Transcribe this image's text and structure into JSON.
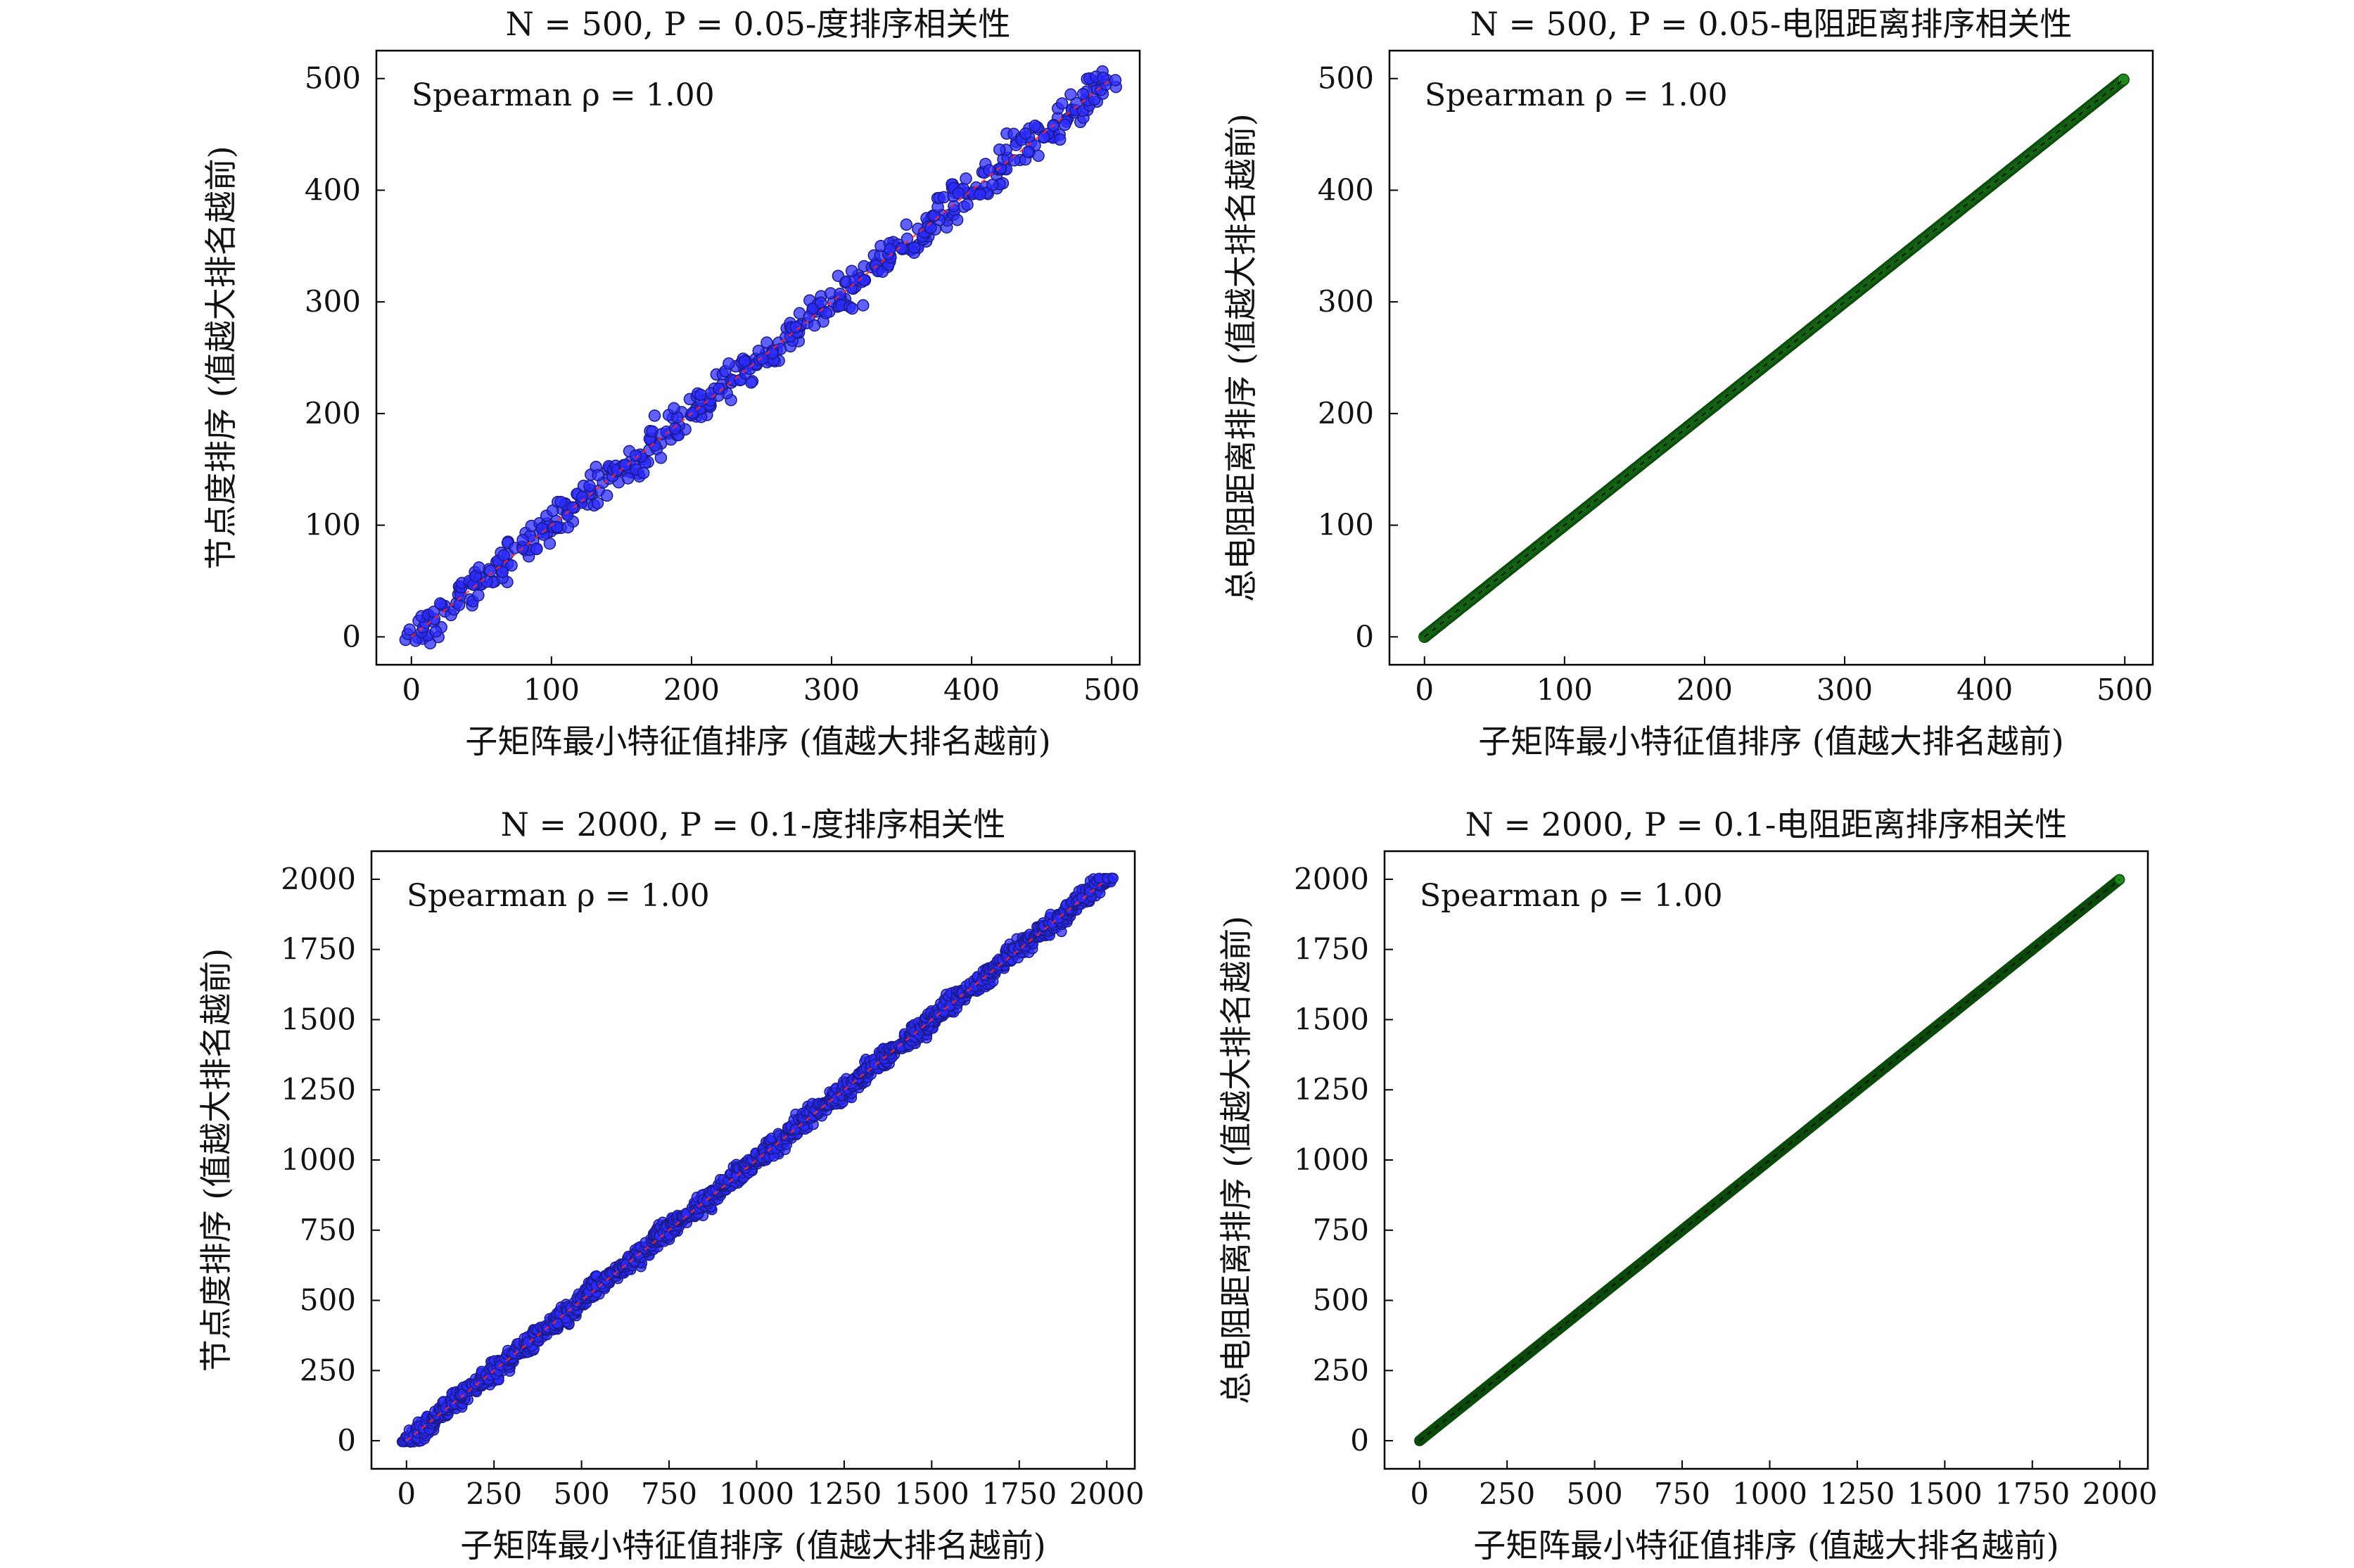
{
  "figure": {
    "colors": {
      "degree_marker": "#2b2bff",
      "degree_edge": "#1a1a8a",
      "degree_line": "#ff2a2a",
      "resistance_marker": "#1f8a1f",
      "resistance_edge": "#0b4a0b",
      "resistance_line": "#111111"
    }
  },
  "chart_data": [
    {
      "type": "scatter",
      "title": "N = 500, P = 0.05-度排序相关性",
      "xlabel": "子矩阵最小特征值排序 (值越大排名越前)",
      "ylabel": "节点度排序 (值越大排名越前)",
      "annotation": "Spearman ρ = 1.00",
      "xlim": [
        -25,
        520
      ],
      "ylim": [
        -25,
        525
      ],
      "xticks": [
        0,
        100,
        200,
        300,
        400,
        500
      ],
      "yticks": [
        0,
        100,
        200,
        300,
        400,
        500
      ],
      "n_points": 500,
      "scatter_band_halfwidth": 18,
      "series": [
        {
          "x_range": [
            0,
            499
          ],
          "y_trend": "y ≈ x with stepwise scatter",
          "marker": "circle",
          "color": "degree"
        }
      ],
      "reference_line": [
        [
          0,
          0
        ],
        [
          499,
          499
        ]
      ]
    },
    {
      "type": "scatter",
      "title": "N = 500, P = 0.05-电阻距离排序相关性",
      "xlabel": "子矩阵最小特征值排序 (值越大排名越前)",
      "ylabel": "总电阻距离排序 (值越大排名越前)",
      "annotation": "Spearman ρ = 1.00",
      "xlim": [
        -25,
        520
      ],
      "ylim": [
        -25,
        525
      ],
      "xticks": [
        0,
        100,
        200,
        300,
        400,
        500
      ],
      "yticks": [
        0,
        100,
        200,
        300,
        400,
        500
      ],
      "n_points": 500,
      "scatter_band_halfwidth": 0,
      "series": [
        {
          "x_range": [
            0,
            499
          ],
          "y_trend": "y = x",
          "marker": "circle",
          "color": "resistance"
        }
      ],
      "reference_line": [
        [
          0,
          0
        ],
        [
          499,
          499
        ]
      ]
    },
    {
      "type": "scatter",
      "title": "N = 2000, P = 0.1-度排序相关性",
      "xlabel": "子矩阵最小特征值排序 (值越大排名越前)",
      "ylabel": "节点度排序 (值越大排名越前)",
      "annotation": "Spearman ρ = 1.00",
      "xlim": [
        -100,
        2080
      ],
      "ylim": [
        -100,
        2100
      ],
      "xticks": [
        0,
        250,
        500,
        750,
        1000,
        1250,
        1500,
        1750,
        2000
      ],
      "yticks": [
        0,
        250,
        500,
        750,
        1000,
        1250,
        1500,
        1750,
        2000
      ],
      "n_points": 2000,
      "scatter_band_halfwidth": 35,
      "series": [
        {
          "x_range": [
            0,
            1999
          ],
          "y_trend": "y ≈ x with stepwise scatter",
          "marker": "circle",
          "color": "degree"
        }
      ],
      "reference_line": [
        [
          0,
          0
        ],
        [
          1999,
          1999
        ]
      ]
    },
    {
      "type": "scatter",
      "title": "N = 2000, P = 0.1-电阻距离排序相关性",
      "xlabel": "子矩阵最小特征值排序 (值越大排名越前)",
      "ylabel": "总电阻距离排序 (值越大排名越前)",
      "annotation": "Spearman ρ = 1.00",
      "xlim": [
        -100,
        2080
      ],
      "ylim": [
        -100,
        2100
      ],
      "xticks": [
        0,
        250,
        500,
        750,
        1000,
        1250,
        1500,
        1750,
        2000
      ],
      "yticks": [
        0,
        250,
        500,
        750,
        1000,
        1250,
        1500,
        1750,
        2000
      ],
      "n_points": 2000,
      "scatter_band_halfwidth": 0,
      "series": [
        {
          "x_range": [
            0,
            1999
          ],
          "y_trend": "y = x",
          "marker": "circle",
          "color": "resistance"
        }
      ],
      "reference_line": [
        [
          0,
          0
        ],
        [
          1999,
          1999
        ]
      ]
    }
  ]
}
